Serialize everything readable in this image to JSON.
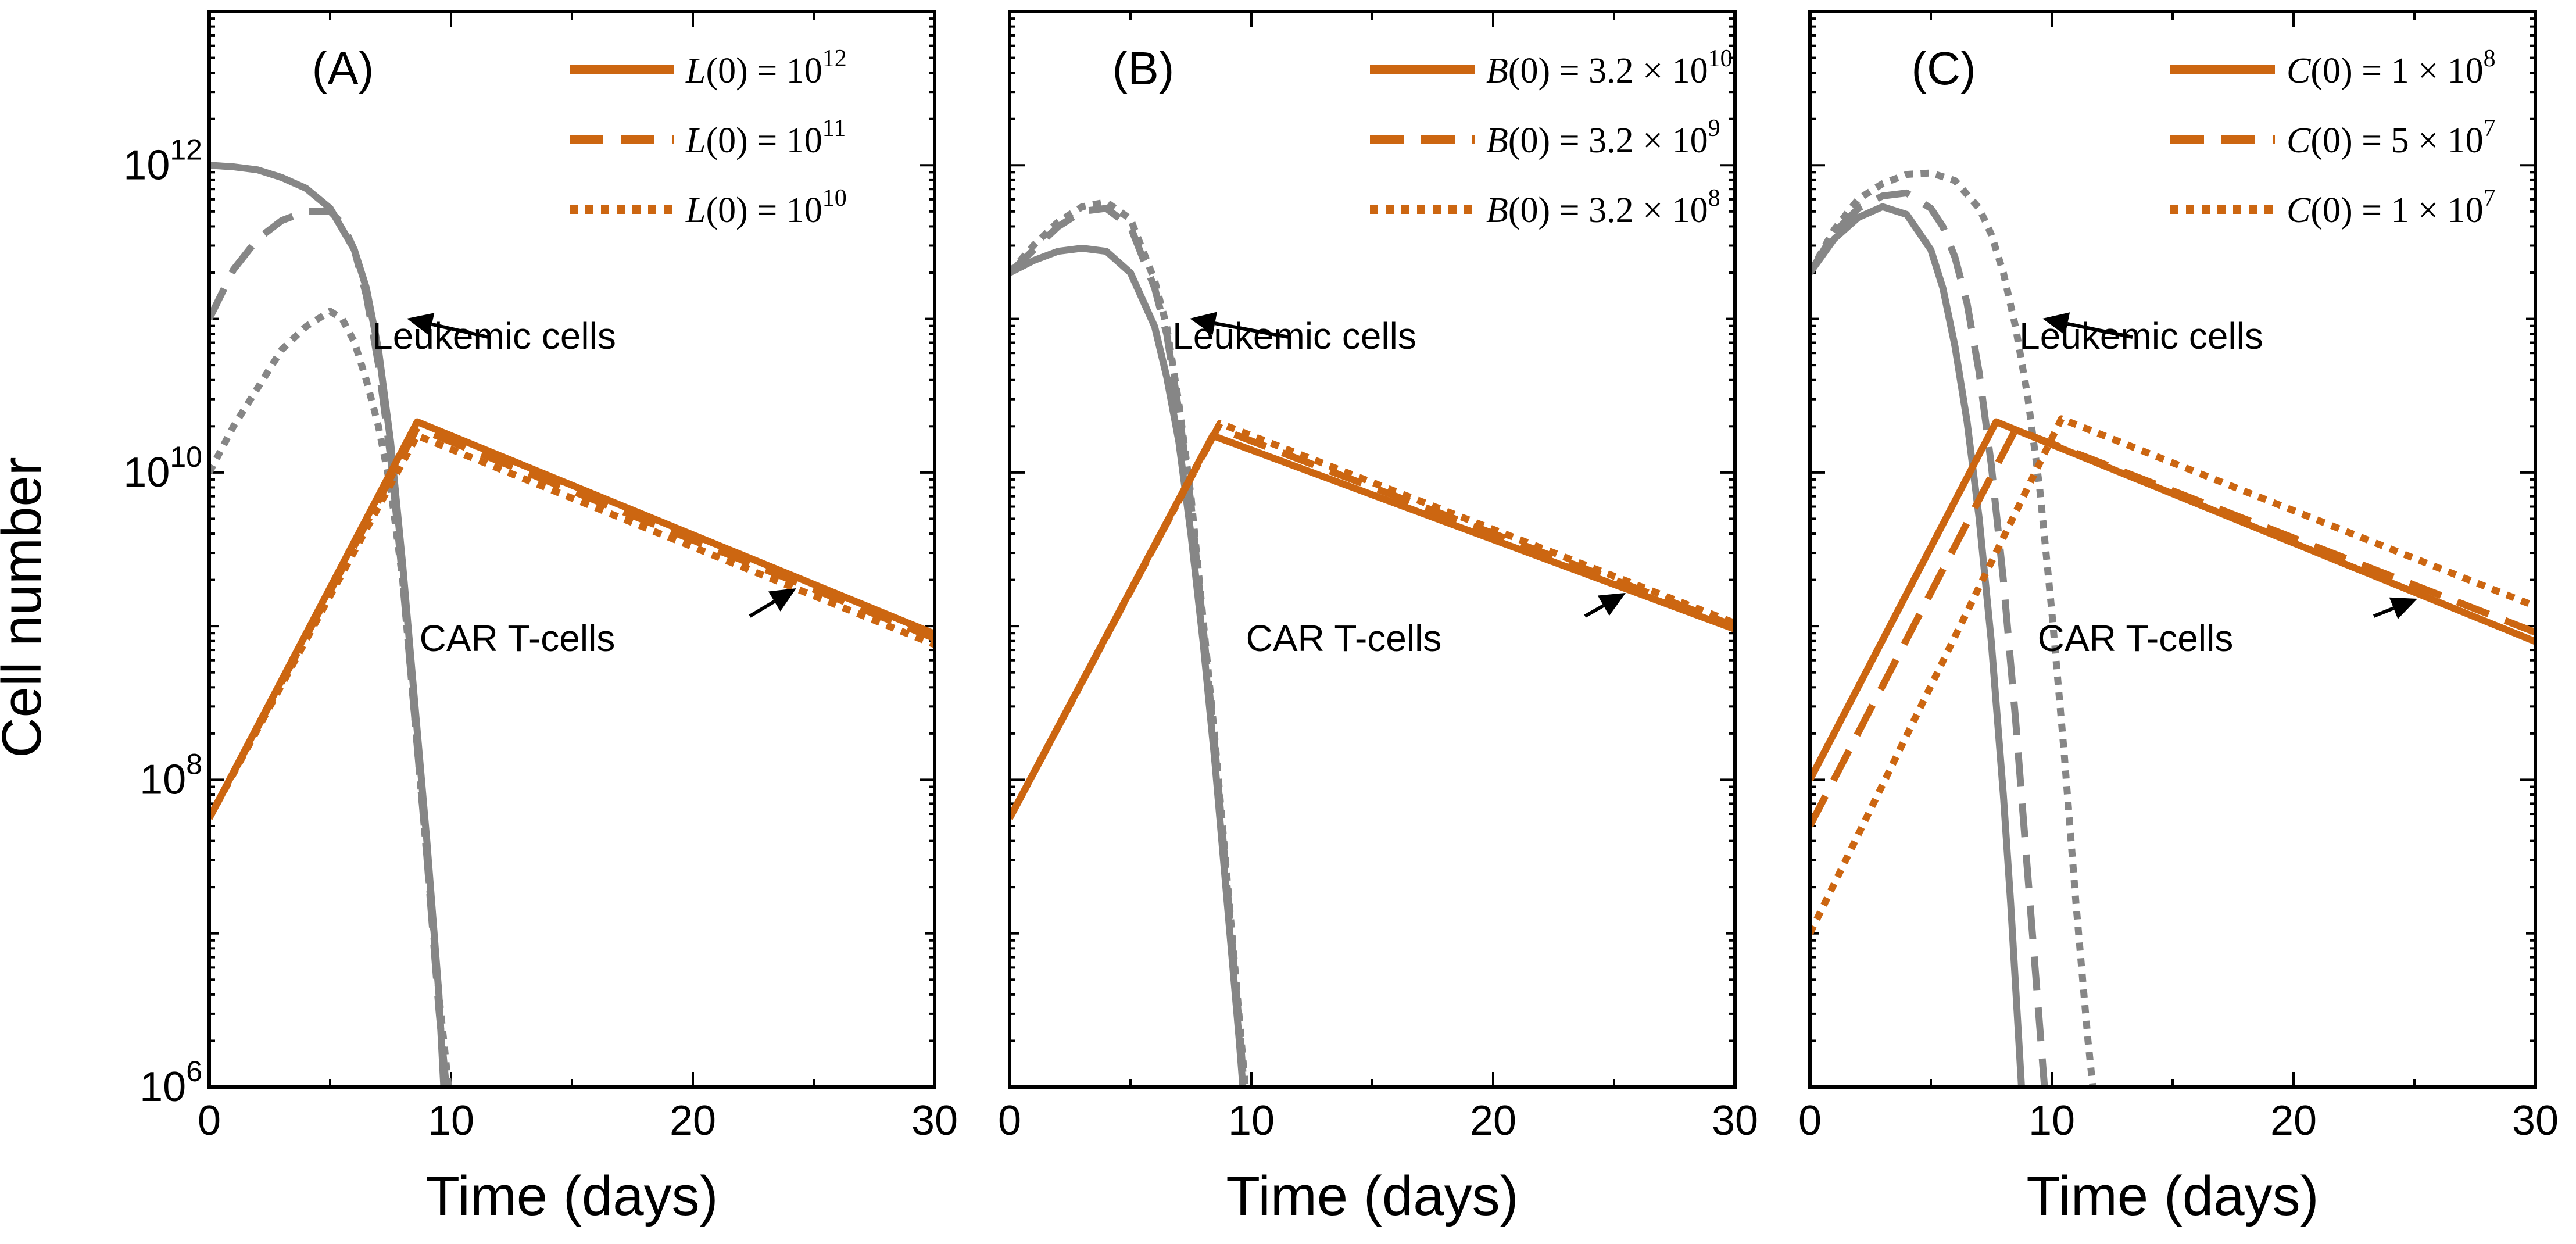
{
  "figure": {
    "ylabel": "Cell number",
    "xlabel": "Time (days)"
  },
  "colors": {
    "car": "#CC6611",
    "leukemic": "#868686",
    "axis": "#000000"
  },
  "chart_data": [
    {
      "type": "line",
      "panel_label": "(A)",
      "title": "",
      "xlabel": "Time (days)",
      "ylabel": "Cell number",
      "yscale": "log",
      "xlim": [
        0,
        30
      ],
      "ylim": [
        1000000.0,
        10000000000000.0
      ],
      "x_ticks": [
        "0",
        "10",
        "20",
        "30"
      ],
      "y_ticks": [
        {
          "base": "10",
          "exp": "6"
        },
        {
          "base": "10",
          "exp": "8"
        },
        {
          "base": "10",
          "exp": "10"
        },
        {
          "base": "10",
          "exp": "12"
        }
      ],
      "legend_position": "top-right",
      "legend": [
        {
          "var": "L",
          "rest": "(0) = 10",
          "sup": "12",
          "style": "solid"
        },
        {
          "var": "L",
          "rest": "(0) = 10",
          "sup": "11",
          "style": "dashed"
        },
        {
          "var": "L",
          "rest": "(0) = 10",
          "sup": "10",
          "style": "dotted"
        }
      ],
      "annotations": {
        "leukemic": "Leukemic cells",
        "car": "CAR T-cells"
      },
      "series": [
        {
          "name": "Leukemic cells, L(0) = 10^12",
          "group": "leukemic",
          "style": "solid",
          "x": [
            0,
            1,
            2,
            3,
            4,
            5,
            6,
            6.5,
            7,
            7.5,
            8,
            8.5,
            9,
            9.5,
            9.7
          ],
          "log10_y": [
            12.0,
            11.99,
            11.97,
            11.92,
            11.85,
            11.72,
            11.45,
            11.2,
            10.8,
            10.2,
            9.4,
            8.5,
            7.6,
            6.6,
            6.0
          ]
        },
        {
          "name": "Leukemic cells, L(0) = 10^11",
          "group": "leukemic",
          "style": "dashed",
          "x": [
            0,
            1,
            2,
            3,
            4,
            5,
            5.5,
            6,
            6.5,
            7,
            7.5,
            8,
            8.5,
            9,
            9.5,
            9.8
          ],
          "log10_y": [
            11.0,
            11.32,
            11.52,
            11.64,
            11.7,
            11.7,
            11.62,
            11.45,
            11.15,
            10.7,
            10.1,
            9.3,
            8.4,
            7.5,
            6.5,
            6.0
          ]
        },
        {
          "name": "Leukemic cells, L(0) = 10^10",
          "group": "leukemic",
          "style": "dotted",
          "x": [
            0,
            1,
            2,
            3,
            4,
            5,
            5.5,
            6,
            6.5,
            7,
            7.5,
            8,
            8.5,
            9,
            9.5,
            9.9
          ],
          "log10_y": [
            10.0,
            10.3,
            10.55,
            10.8,
            10.95,
            11.05,
            11.0,
            10.85,
            10.6,
            10.3,
            9.9,
            9.3,
            8.4,
            7.5,
            6.6,
            6.0
          ]
        },
        {
          "name": "CAR T-cells, L(0) = 10^12",
          "group": "car",
          "style": "solid",
          "x": [
            0,
            8.6,
            30
          ],
          "log10_y": [
            7.75,
            10.33,
            8.95
          ]
        },
        {
          "name": "CAR T-cells, L(0) = 10^11",
          "group": "car",
          "style": "dashed",
          "x": [
            0,
            8.6,
            30
          ],
          "log10_y": [
            7.75,
            10.29,
            8.92
          ]
        },
        {
          "name": "CAR T-cells, L(0) = 10^10",
          "group": "car",
          "style": "dotted",
          "x": [
            0,
            8.6,
            30
          ],
          "log10_y": [
            7.75,
            10.24,
            8.88
          ]
        }
      ]
    },
    {
      "type": "line",
      "panel_label": "(B)",
      "title": "",
      "xlabel": "Time (days)",
      "ylabel": "",
      "yscale": "log",
      "xlim": [
        0,
        30
      ],
      "ylim": [
        1000000.0,
        10000000000000.0
      ],
      "x_ticks": [
        "0",
        "10",
        "20",
        "30"
      ],
      "y_ticks": [],
      "legend_position": "top-right",
      "legend": [
        {
          "var": "B",
          "rest": "(0) = 3.2 × 10",
          "sup": "10",
          "style": "solid"
        },
        {
          "var": "B",
          "rest": "(0) = 3.2 × 10",
          "sup": "9",
          "style": "dashed"
        },
        {
          "var": "B",
          "rest": "(0) = 3.2 × 10",
          "sup": "8",
          "style": "dotted"
        }
      ],
      "annotations": {
        "leukemic": "Leukemic cells",
        "car": "CAR T-cells"
      },
      "series": [
        {
          "name": "Leukemic cells, B(0) = 3.2×10^10",
          "group": "leukemic",
          "style": "solid",
          "x": [
            0,
            1,
            2,
            3,
            4,
            5,
            6,
            6.5,
            7,
            7.5,
            8,
            8.5,
            9,
            9.5,
            9.65
          ],
          "log10_y": [
            11.3,
            11.38,
            11.44,
            11.46,
            11.44,
            11.3,
            10.95,
            10.62,
            10.2,
            9.6,
            8.9,
            8.1,
            7.2,
            6.3,
            6.0
          ]
        },
        {
          "name": "Leukemic cells, B(0) = 3.2×10^9",
          "group": "leukemic",
          "style": "dashed",
          "x": [
            0,
            1,
            2,
            3,
            4,
            5,
            6,
            6.5,
            7,
            7.5,
            8,
            8.5,
            9,
            9.5,
            9.7
          ],
          "log10_y": [
            11.3,
            11.45,
            11.6,
            11.7,
            11.72,
            11.6,
            11.2,
            10.9,
            10.4,
            9.8,
            9.0,
            8.2,
            7.3,
            6.4,
            6.0
          ]
        },
        {
          "name": "Leukemic cells, B(0) = 3.2×10^8",
          "group": "leukemic",
          "style": "dotted",
          "x": [
            0,
            1,
            2,
            3,
            4,
            5,
            6,
            6.5,
            7,
            7.5,
            8,
            8.5,
            9,
            9.5,
            9.75
          ],
          "log10_y": [
            11.3,
            11.48,
            11.63,
            11.73,
            11.76,
            11.65,
            11.25,
            10.95,
            10.45,
            9.85,
            9.05,
            8.25,
            7.35,
            6.45,
            6.0
          ]
        },
        {
          "name": "CAR T-cells, B(0) = 3.2×10^10",
          "group": "car",
          "style": "solid",
          "x": [
            0,
            8.4,
            30
          ],
          "log10_y": [
            7.75,
            10.24,
            8.98
          ]
        },
        {
          "name": "CAR T-cells, B(0) = 3.2×10^9",
          "group": "car",
          "style": "dashed",
          "x": [
            0,
            8.6,
            30
          ],
          "log10_y": [
            7.75,
            10.29,
            9.0
          ]
        },
        {
          "name": "CAR T-cells, B(0) = 3.2×10^8",
          "group": "car",
          "style": "dotted",
          "x": [
            0,
            8.7,
            30
          ],
          "log10_y": [
            7.75,
            10.32,
            9.02
          ]
        }
      ]
    },
    {
      "type": "line",
      "panel_label": "(C)",
      "title": "",
      "xlabel": "Time (days)",
      "ylabel": "",
      "yscale": "log",
      "xlim": [
        0,
        30
      ],
      "ylim": [
        1000000.0,
        10000000000000.0
      ],
      "x_ticks": [
        "0",
        "10",
        "20",
        "30"
      ],
      "y_ticks": [],
      "legend_position": "top-right",
      "legend": [
        {
          "var": "C",
          "rest": "(0) = 1 × 10",
          "sup": "8",
          "style": "solid"
        },
        {
          "var": "C",
          "rest": "(0) = 5 × 10",
          "sup": "7",
          "style": "dashed"
        },
        {
          "var": "C",
          "rest": "(0) = 1 × 10",
          "sup": "7",
          "style": "dotted"
        }
      ],
      "annotations": {
        "leukemic": "Leukemic cells",
        "car": "CAR T-cells"
      },
      "series": [
        {
          "name": "Leukemic cells, C(0) = 1×10^8",
          "group": "leukemic",
          "style": "solid",
          "x": [
            0,
            1,
            2,
            3,
            4,
            5,
            5.5,
            6,
            6.5,
            7,
            7.5,
            8,
            8.3,
            8.6,
            8.75
          ],
          "log10_y": [
            11.3,
            11.52,
            11.66,
            11.73,
            11.68,
            11.45,
            11.2,
            10.82,
            10.33,
            9.7,
            8.9,
            7.9,
            7.2,
            6.4,
            6.0
          ]
        },
        {
          "name": "Leukemic cells, C(0) = 5×10^7",
          "group": "leukemic",
          "style": "dashed",
          "x": [
            0,
            1,
            2,
            3,
            4,
            5,
            5.5,
            6,
            6.5,
            7,
            7.5,
            8,
            8.5,
            9,
            9.5,
            9.7
          ],
          "log10_y": [
            11.3,
            11.56,
            11.72,
            11.8,
            11.82,
            11.72,
            11.6,
            11.4,
            11.1,
            10.65,
            10.05,
            9.3,
            8.4,
            7.4,
            6.4,
            6.0
          ]
        },
        {
          "name": "Leukemic cells, C(0) = 1×10^7",
          "group": "leukemic",
          "style": "dotted",
          "x": [
            0,
            1,
            2,
            3,
            4,
            5,
            6,
            7,
            7.5,
            8,
            8.5,
            9,
            9.5,
            10,
            10.5,
            11,
            11.5,
            11.7
          ],
          "log10_y": [
            11.3,
            11.58,
            11.78,
            11.88,
            11.94,
            11.95,
            11.9,
            11.72,
            11.55,
            11.3,
            10.95,
            10.5,
            9.9,
            9.1,
            8.2,
            7.2,
            6.3,
            6.0
          ]
        },
        {
          "name": "CAR T-cells, C(0) = 1×10^8",
          "group": "car",
          "style": "solid",
          "x": [
            0,
            7.7,
            30
          ],
          "log10_y": [
            8.0,
            10.33,
            8.9
          ]
        },
        {
          "name": "CAR T-cells, C(0) = 5×10^7",
          "group": "car",
          "style": "dashed",
          "x": [
            0,
            8.5,
            30
          ],
          "log10_y": [
            7.7,
            10.28,
            8.96
          ]
        },
        {
          "name": "CAR T-cells, C(0) = 1×10^7",
          "group": "car",
          "style": "dotted",
          "x": [
            0,
            10.4,
            30
          ],
          "log10_y": [
            7.0,
            10.35,
            9.13
          ]
        }
      ]
    }
  ]
}
